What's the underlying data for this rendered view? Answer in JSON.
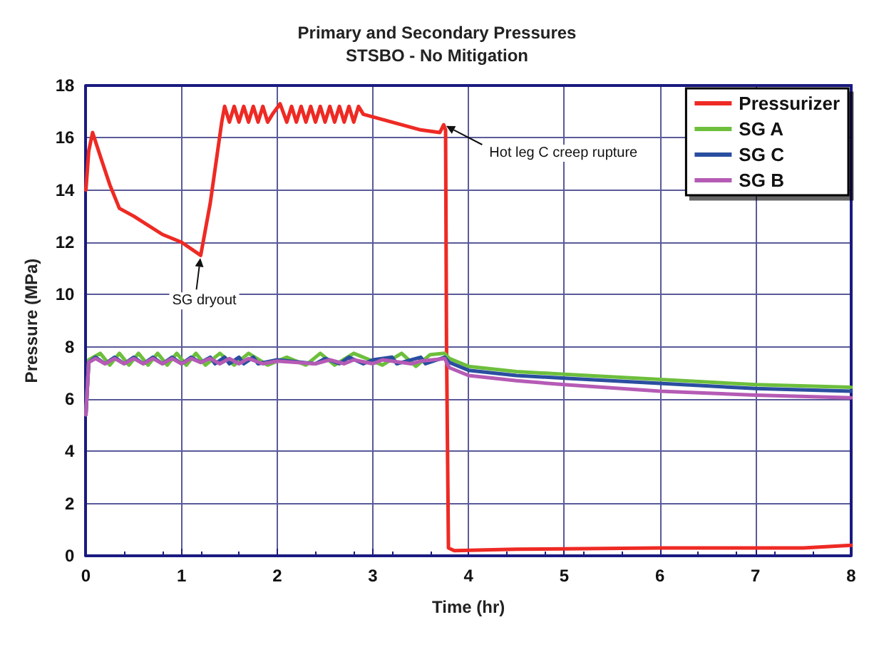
{
  "chart_data": {
    "type": "line",
    "title": "Primary and Secondary Pressures",
    "subtitle": "STSBO - No Mitigation",
    "xlabel": "Time (hr)",
    "ylabel": "Pressure (MPa)",
    "xlim": [
      0,
      8
    ],
    "xticks": [
      0,
      1,
      2,
      3,
      4,
      5,
      6,
      7,
      8
    ],
    "ylim": [
      0,
      18
    ],
    "yticks": [
      0,
      2,
      4,
      6,
      8,
      10,
      12,
      14,
      16,
      18
    ],
    "grid": true,
    "legend": "top right",
    "marker": "none",
    "line_style": "solid",
    "annotations": [
      {
        "text": "SG dryout",
        "x": 1.2,
        "y": 11.5
      },
      {
        "text": "Hot leg C creep rupture",
        "x": 3.74,
        "y": 16.5
      }
    ],
    "series": [
      {
        "name": "Pressurizer",
        "color": "#ee2a24",
        "x": [
          0,
          0.03,
          0.07,
          0.15,
          0.25,
          0.35,
          0.5,
          0.8,
          1.0,
          1.2,
          1.3,
          1.42,
          1.45,
          1.5,
          1.55,
          1.6,
          1.65,
          1.7,
          1.75,
          1.8,
          1.85,
          1.9,
          1.95,
          2.03,
          2.1,
          2.15,
          2.2,
          2.25,
          2.3,
          2.35,
          2.4,
          2.45,
          2.5,
          2.55,
          2.6,
          2.65,
          2.7,
          2.75,
          2.8,
          2.85,
          2.9,
          3.2,
          3.5,
          3.7,
          3.74,
          3.76,
          3.77,
          3.79,
          3.85,
          4.5,
          6,
          7.5,
          8
        ],
        "values": [
          14.0,
          15.5,
          16.2,
          15.3,
          14.2,
          13.3,
          13.0,
          12.3,
          12.0,
          11.5,
          13.5,
          16.6,
          17.2,
          16.6,
          17.2,
          16.6,
          17.2,
          16.6,
          17.2,
          16.6,
          17.2,
          16.6,
          16.9,
          17.3,
          16.6,
          17.2,
          16.6,
          17.2,
          16.6,
          17.2,
          16.6,
          17.2,
          16.6,
          17.2,
          16.6,
          17.2,
          16.6,
          17.2,
          16.6,
          17.2,
          16.9,
          16.6,
          16.3,
          16.2,
          16.5,
          16.3,
          8.0,
          0.3,
          0.2,
          0.25,
          0.3,
          0.3,
          0.4
        ]
      },
      {
        "name": "SG A",
        "color": "#6dbf3c",
        "x": [
          0,
          0.03,
          0.15,
          0.25,
          0.35,
          0.45,
          0.55,
          0.65,
          0.75,
          0.85,
          0.95,
          1.05,
          1.15,
          1.25,
          1.4,
          1.55,
          1.7,
          1.9,
          2.1,
          2.3,
          2.45,
          2.6,
          2.8,
          3.1,
          3.3,
          3.45,
          3.6,
          3.75,
          3.8,
          4.0,
          4.5,
          5,
          6,
          7,
          8
        ],
        "values": [
          5.4,
          7.5,
          7.75,
          7.3,
          7.75,
          7.3,
          7.75,
          7.3,
          7.75,
          7.3,
          7.75,
          7.3,
          7.75,
          7.3,
          7.75,
          7.3,
          7.75,
          7.3,
          7.6,
          7.3,
          7.75,
          7.3,
          7.75,
          7.3,
          7.75,
          7.25,
          7.7,
          7.75,
          7.55,
          7.25,
          7.05,
          6.95,
          6.75,
          6.55,
          6.45
        ]
      },
      {
        "name": "SG C",
        "color": "#2a4ea0",
        "x": [
          0,
          0.03,
          0.1,
          0.2,
          0.3,
          0.4,
          0.5,
          0.6,
          0.7,
          0.8,
          0.9,
          1.0,
          1.1,
          1.2,
          1.3,
          1.35,
          1.45,
          1.5,
          1.6,
          1.65,
          1.75,
          1.8,
          2.0,
          2.4,
          2.5,
          2.65,
          2.75,
          2.9,
          3.0,
          3.2,
          3.25,
          3.5,
          3.55,
          3.75,
          3.8,
          4.0,
          4.5,
          5,
          6,
          7,
          8
        ],
        "values": [
          5.4,
          7.4,
          7.6,
          7.35,
          7.6,
          7.35,
          7.6,
          7.35,
          7.6,
          7.35,
          7.6,
          7.35,
          7.6,
          7.4,
          7.6,
          7.35,
          7.6,
          7.35,
          7.6,
          7.35,
          7.6,
          7.35,
          7.5,
          7.35,
          7.55,
          7.35,
          7.6,
          7.35,
          7.5,
          7.6,
          7.35,
          7.6,
          7.35,
          7.6,
          7.4,
          7.1,
          6.9,
          6.8,
          6.6,
          6.4,
          6.3
        ]
      },
      {
        "name": "SG B",
        "color": "#b55bb5",
        "x": [
          0,
          0.03,
          0.1,
          0.2,
          0.3,
          0.4,
          0.5,
          0.6,
          0.7,
          0.8,
          0.9,
          1.0,
          1.1,
          1.2,
          1.3,
          1.4,
          1.5,
          1.6,
          1.7,
          1.85,
          2.0,
          2.4,
          2.55,
          2.7,
          2.8,
          3.0,
          3.1,
          3.4,
          3.5,
          3.75,
          3.8,
          4.0,
          4.5,
          5,
          6,
          7,
          8
        ],
        "values": [
          5.4,
          7.4,
          7.55,
          7.35,
          7.55,
          7.35,
          7.55,
          7.35,
          7.55,
          7.35,
          7.55,
          7.35,
          7.55,
          7.4,
          7.55,
          7.35,
          7.55,
          7.35,
          7.55,
          7.35,
          7.45,
          7.35,
          7.5,
          7.35,
          7.5,
          7.35,
          7.5,
          7.35,
          7.45,
          7.55,
          7.2,
          6.9,
          6.7,
          6.55,
          6.3,
          6.15,
          6.05
        ]
      }
    ]
  }
}
